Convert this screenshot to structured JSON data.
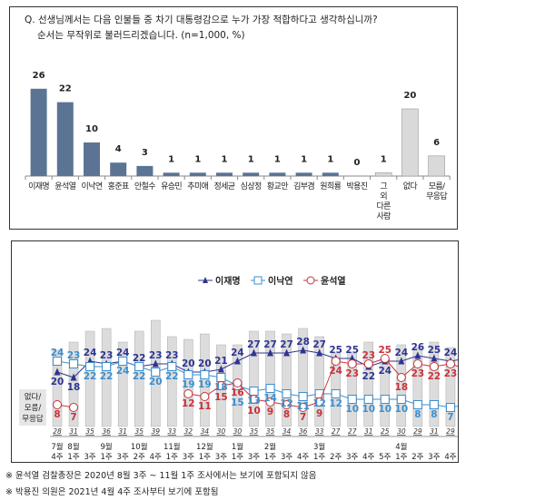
{
  "question": {
    "line1": "Q. 선생님께서는 다음 인물들 중 차기 대통령감으로 누가 가장 적합하다고 생각하십니까?",
    "line2": "순서는 무작위로 불러드리겠습니다. (n=1,000, %)"
  },
  "footnotes": [
    "※ 윤석열 검찰총장은 2020년 8월 3주 ~ 11월 1주 조사에서는 보기에 포함되지 않음",
    "※ 박용진 의원은 2021년 4월 4주 조사부터 보기에 포함됨"
  ],
  "chart_data": [
    {
      "type": "bar",
      "title": "Q. 선생님께서는 다음 인물들 중 차기 대통령감으로 누가 가장 적합하다고 생각하십니까?",
      "categories": [
        "이재명",
        "윤석열",
        "이낙연",
        "홍준표",
        "안철수",
        "유승민",
        "추미애",
        "정세균",
        "심상정",
        "황교안",
        "김부겸",
        "원희룡",
        "박용진",
        "그 외 다른 사람",
        "없다",
        "모름/ 무응답"
      ],
      "values": [
        26,
        22,
        10,
        4,
        3,
        1,
        1,
        1,
        1,
        1,
        1,
        1,
        0,
        1,
        20,
        6
      ],
      "highlight": [
        "#5b7494",
        "#5b7494",
        "#5b7494",
        "#5b7494",
        "#5b7494",
        "#5b7494",
        "#5b7494",
        "#5b7494",
        "#5b7494",
        "#5b7494",
        "#5b7494",
        "#5b7494",
        "#5b7494",
        "#d9d9d9",
        "#d9d9d9",
        "#d9d9d9"
      ],
      "ylim": [
        0,
        30
      ]
    },
    {
      "type": "line",
      "legend_position": "top-center",
      "ylabel": "없다/ 모름/ 무응답",
      "months": [
        "7월",
        "8월",
        "",
        "9월",
        "",
        "10월",
        "",
        "11월",
        "",
        "12월",
        "",
        "1월",
        "",
        "2월",
        "",
        "",
        "3월",
        "",
        "",
        "",
        "",
        "4월",
        "",
        "",
        "",
        "5월",
        "",
        "",
        ""
      ],
      "weeks": [
        "4주",
        "1주",
        "3주",
        "1주",
        "3주",
        "2주",
        "4주",
        "1주",
        "3주",
        "1주",
        "3주",
        "1주",
        "3주",
        "1주",
        "3주",
        "4주",
        "1주",
        "2주",
        "3주",
        "4주",
        "5주",
        "1주",
        "2주",
        "3주",
        "4주",
        "1주",
        "2주",
        "3주",
        "4주"
      ],
      "bars": {
        "name": "없다/모름/무응답",
        "color": "#d9d9d9",
        "values": [
          28,
          31,
          35,
          36,
          31,
          35,
          39,
          33,
          32,
          34,
          30,
          30,
          35,
          35,
          34,
          36,
          33,
          27,
          27,
          31,
          25,
          30,
          29,
          31,
          29,
          29,
          30,
          30,
          26
        ]
      },
      "series": [
        {
          "name": "이재명",
          "color": "#2e3591",
          "marker": "triangle",
          "values": [
            20,
            18,
            24,
            23,
            24,
            22,
            23,
            23,
            20,
            20,
            21,
            24,
            27,
            27,
            27,
            28,
            27,
            25,
            25,
            22,
            24,
            24,
            26,
            25,
            24,
            25,
            25,
            25,
            26
          ]
        },
        {
          "name": "이낙연",
          "color": "#3b8fcf",
          "marker": "square",
          "values": [
            24,
            23,
            22,
            22,
            24,
            22,
            20,
            22,
            19,
            19,
            18,
            15,
            13,
            14,
            12,
            11,
            12,
            12,
            10,
            10,
            10,
            10,
            8,
            8,
            7,
            8,
            8,
            10,
            10
          ]
        },
        {
          "name": "윤석열",
          "color": "#c8323a",
          "marker": "circle",
          "values": [
            8,
            7,
            null,
            null,
            null,
            null,
            null,
            null,
            12,
            11,
            15,
            16,
            10,
            9,
            8,
            7,
            9,
            24,
            23,
            23,
            25,
            18,
            23,
            22,
            23,
            21,
            20,
            19,
            22
          ]
        }
      ],
      "ylim": [
        0,
        40
      ]
    }
  ]
}
